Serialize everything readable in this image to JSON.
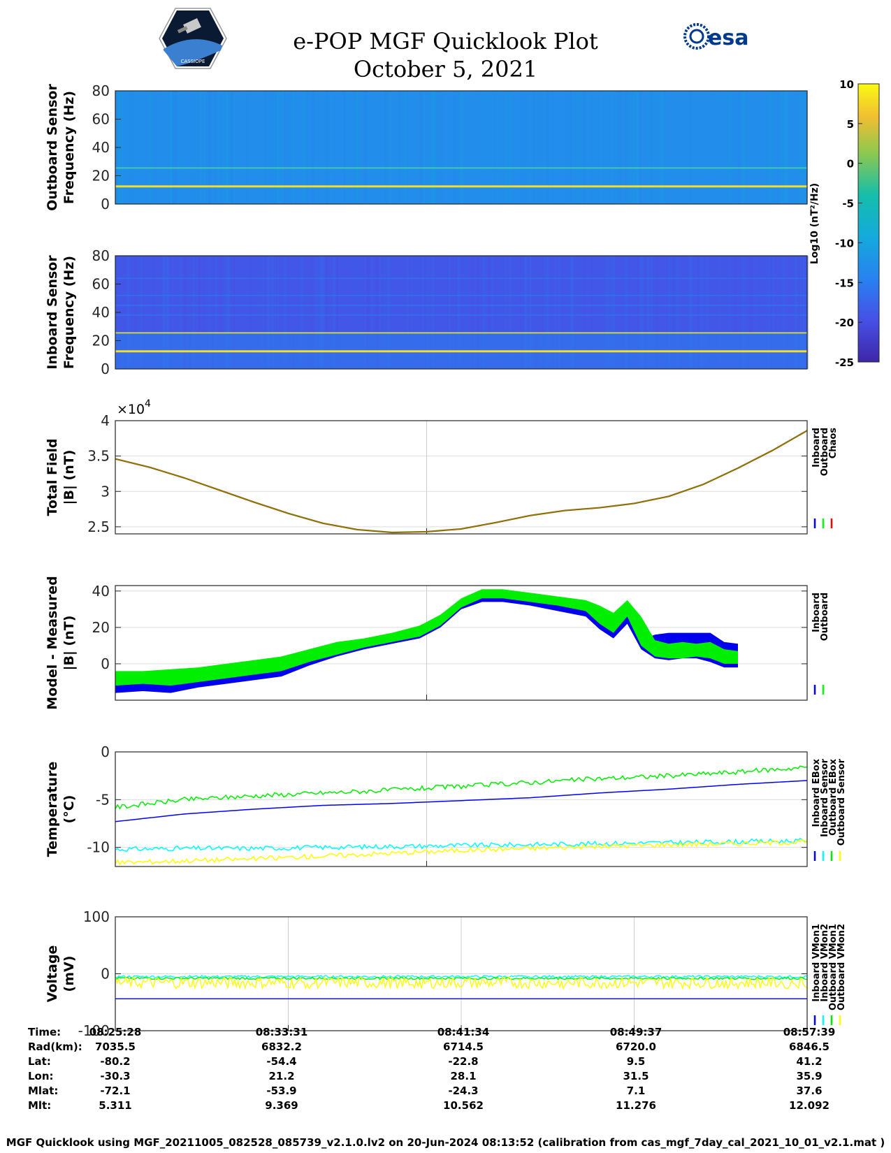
{
  "header": {
    "title_line1": "e-POP MGF Quicklook Plot",
    "title_line2": "October 5, 2021",
    "esa_logo_text": "esa",
    "epop_logo_text": "CASSIOPE"
  },
  "colorbar": {
    "label": "Log10 (nT²/Hz)",
    "ticks": [
      10,
      5,
      0,
      -5,
      -10,
      -15,
      -20,
      -25
    ],
    "range": [
      -25,
      10
    ]
  },
  "chart_data": [
    {
      "type": "heatmap",
      "name": "outboard-spectrogram",
      "ylabel": [
        "Outboard Sensor",
        "Frequency (Hz)"
      ],
      "ylim": [
        0,
        80
      ],
      "yticks": [
        0,
        20,
        40,
        60,
        80
      ],
      "lines_hz": [
        12.5,
        25.5
      ],
      "background_log": -13
    },
    {
      "type": "heatmap",
      "name": "inboard-spectrogram",
      "ylabel": [
        "Inboard Sensor",
        "Frequency (Hz)"
      ],
      "ylim": [
        0,
        80
      ],
      "yticks": [
        0,
        20,
        40,
        60,
        80
      ],
      "lines_hz": [
        12.5,
        25.5
      ],
      "background_log": -19
    },
    {
      "type": "line",
      "name": "total-field",
      "ylabel": [
        "Total Field",
        "|B| (nT)"
      ],
      "ylim": [
        24000,
        40000
      ],
      "yticks": [
        25000,
        30000,
        35000,
        40000
      ],
      "ytick_labels": [
        "2.5",
        "3",
        "3.5",
        "4"
      ],
      "exponent_label": "×10",
      "exponent_power": "4",
      "x": [
        0,
        0.05,
        0.1,
        0.15,
        0.2,
        0.25,
        0.3,
        0.35,
        0.4,
        0.45,
        0.5,
        0.55,
        0.6,
        0.65,
        0.7,
        0.75,
        0.8,
        0.85,
        0.9,
        0.95,
        1.0
      ],
      "y": [
        34600,
        33400,
        31900,
        30200,
        28500,
        26900,
        25500,
        24600,
        24200,
        24300,
        24700,
        25600,
        26600,
        27300,
        27700,
        28300,
        29300,
        31000,
        33300,
        35800,
        38600
      ],
      "legend": [
        "Inboard",
        "Outboard",
        "Chaos"
      ],
      "colors": [
        "#0000ff",
        "#00ff00",
        "#ff0000"
      ]
    },
    {
      "type": "line",
      "name": "model-minus-measured",
      "ylabel": [
        "Model - Measured",
        "|B| (nT)"
      ],
      "ylim": [
        -20,
        43
      ],
      "yticks": [
        0,
        20,
        40
      ],
      "x": [
        0,
        0.04,
        0.08,
        0.12,
        0.16,
        0.2,
        0.24,
        0.28,
        0.32,
        0.36,
        0.4,
        0.44,
        0.47,
        0.5,
        0.53,
        0.56,
        0.6,
        0.64,
        0.68,
        0.7,
        0.72,
        0.74,
        0.76,
        0.78,
        0.8,
        0.82,
        0.84,
        0.86,
        0.88,
        0.9
      ],
      "outboard_upper": [
        -4,
        -4,
        -3,
        -2,
        0,
        2,
        4,
        8,
        12,
        14,
        17,
        21,
        27,
        36,
        41,
        41,
        39,
        37,
        35,
        32,
        28,
        35,
        26,
        13,
        11,
        12,
        11,
        12,
        8,
        7
      ],
      "outboard_lower": [
        -12,
        -11,
        -12,
        -10,
        -8,
        -6,
        -4,
        1,
        5,
        9,
        12,
        15,
        21,
        31,
        36,
        36,
        34,
        32,
        29,
        22,
        17,
        26,
        10,
        4,
        3,
        3,
        4,
        3,
        0,
        0
      ],
      "inboard_upper": [
        -6,
        -5,
        -5,
        -4,
        -2,
        0,
        2,
        6,
        10,
        13,
        16,
        20,
        26,
        34,
        38,
        38,
        36,
        34,
        30,
        24,
        18,
        30,
        13,
        16,
        17,
        17,
        17,
        17,
        12,
        11
      ],
      "inboard_lower": [
        -16,
        -15,
        -16,
        -13,
        -11,
        -9,
        -7,
        -1,
        4,
        8,
        11,
        14,
        20,
        30,
        34,
        34,
        32,
        29,
        26,
        19,
        14,
        22,
        8,
        3,
        2,
        3,
        3,
        1,
        -2,
        -2
      ],
      "legend": [
        "Inboard",
        "Outboard"
      ],
      "colors": [
        "#0000ff",
        "#00ff00"
      ]
    },
    {
      "type": "line",
      "name": "temperature",
      "ylabel": [
        "Temperature",
        "(°C)"
      ],
      "ylim": [
        -12,
        0
      ],
      "yticks": [
        -10,
        -5,
        0
      ],
      "x": [
        0,
        0.1,
        0.2,
        0.3,
        0.4,
        0.5,
        0.6,
        0.7,
        0.8,
        0.9,
        1.0
      ],
      "series": [
        {
          "name": "Inboard EBox",
          "color": "#0000ff",
          "values": [
            -7.3,
            -6.5,
            -6.0,
            -5.6,
            -5.4,
            -5.1,
            -4.8,
            -4.3,
            -3.9,
            -3.4,
            -3.0
          ]
        },
        {
          "name": "Inboard Sensor",
          "color": "#00ffff",
          "values": [
            -10.2,
            -10.1,
            -10.1,
            -10.0,
            -9.9,
            -9.8,
            -9.7,
            -9.6,
            -9.5,
            -9.4,
            -9.3
          ]
        },
        {
          "name": "Outboard EBox",
          "color": "#00ee00",
          "values": [
            -5.8,
            -5.0,
            -4.6,
            -4.3,
            -4.0,
            -3.6,
            -3.2,
            -2.8,
            -2.5,
            -2.1,
            -1.6
          ]
        },
        {
          "name": "Outboard Sensor",
          "color": "#ffff00",
          "values": [
            -11.6,
            -11.4,
            -11.2,
            -10.9,
            -10.6,
            -10.3,
            -10.1,
            -9.9,
            -9.7,
            -9.6,
            -9.4
          ]
        }
      ]
    },
    {
      "type": "line",
      "name": "voltage",
      "ylabel": [
        "Voltage",
        "(mV)"
      ],
      "ylim": [
        -100,
        100
      ],
      "yticks": [
        -100,
        0,
        100
      ],
      "series": [
        {
          "name": "Inboard VMon1",
          "color": "#0000ff",
          "level": -44
        },
        {
          "name": "Inboard VMon2",
          "color": "#00ffff",
          "level": -5
        },
        {
          "name": "Outboard VMon1",
          "color": "#00ee00",
          "level": -8
        },
        {
          "name": "Outboard VMon2",
          "color": "#ffff00",
          "level": -16
        }
      ]
    }
  ],
  "ephemeris": {
    "labels": [
      "Time:",
      "Rad(km):",
      "Lat:",
      "Lon:",
      "Mlat:",
      "Mlt:"
    ],
    "columns": [
      [
        "08:25:28",
        "7035.5",
        "-80.2",
        "-30.3",
        "-72.1",
        "5.311"
      ],
      [
        "08:33:31",
        "6832.2",
        "-54.4",
        "21.2",
        "-53.9",
        "9.369"
      ],
      [
        "08:41:34",
        "6714.5",
        "-22.8",
        "28.1",
        "-24.3",
        "10.562"
      ],
      [
        "08:49:37",
        "6720.0",
        "9.5",
        "31.5",
        "7.1",
        "11.276"
      ],
      [
        "08:57:39",
        "6846.5",
        "41.2",
        "35.9",
        "37.6",
        "12.092"
      ]
    ]
  },
  "footer": "MGF Quicklook using MGF_20211005_082528_085739_v2.1.0.lv2 on 20-Jun-2024 08:13:52 (calibration from cas_mgf_7day_cal_2021_10_01_v2.1.mat )"
}
